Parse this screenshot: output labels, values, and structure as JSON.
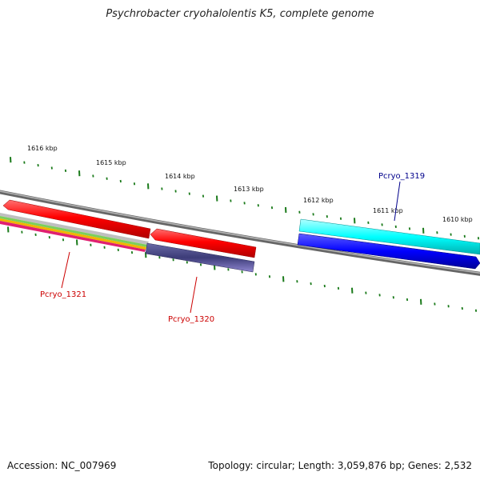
{
  "title": "Psychrobacter cryohalolentis K5, complete genome",
  "footer": {
    "accession": "Accession: NC_007969",
    "summary": "Topology: circular; Length: 3,059,876 bp; Genes: 2,532"
  },
  "scale": {
    "tick_labels": [
      "1616 kbp",
      "1615 kbp",
      "1614 kbp",
      "1613 kbp",
      "1612 kbp",
      "1611 kbp",
      "1610 kbp"
    ],
    "tick_color": "#1a7a1a"
  },
  "genes": [
    {
      "label": "Pcryo_1319",
      "color": "#00008b",
      "strand": "forward"
    },
    {
      "label": "Pcryo_1320",
      "color": "#cc0000",
      "strand": "reverse"
    },
    {
      "label": "Pcryo_1321",
      "color": "#cc0000",
      "strand": "reverse"
    }
  ],
  "colors": {
    "backbone": "#7a7a7a",
    "red_feature": "#ff0000",
    "cyan_feature": "#00ffff",
    "blue_feature": "#0000ff",
    "purple_feature": "#44447a",
    "magenta_feature": "#e0207a"
  }
}
